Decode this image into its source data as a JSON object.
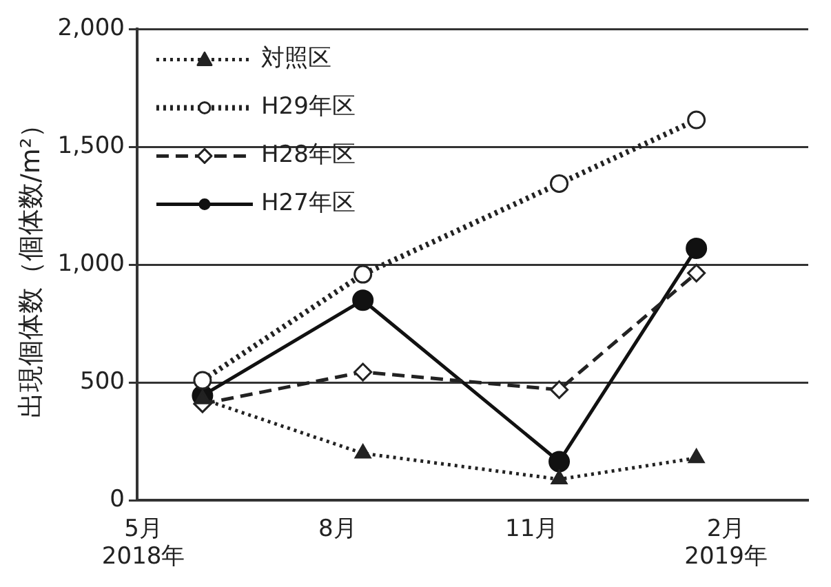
{
  "chart_data": {
    "type": "line",
    "ylabel": "出現個体数（個体数/m²）",
    "xlim": [
      "2018-04-28",
      "2019-03-12"
    ],
    "xticks": [
      {
        "value": "2018-05",
        "label": "5月\n2018年"
      },
      {
        "value": "2018-08",
        "label": "8月"
      },
      {
        "value": "2018-11",
        "label": "11月"
      },
      {
        "value": "2019-02",
        "label": "2月\n2019年"
      }
    ],
    "ylim": [
      0,
      2000
    ],
    "yticks": [
      {
        "value": 0,
        "label": "0"
      },
      {
        "value": 500,
        "label": "500"
      },
      {
        "value": 1000,
        "label": "1,000"
      },
      {
        "value": 1500,
        "label": "1,500"
      },
      {
        "value": 2000,
        "label": "2,000"
      }
    ],
    "x": [
      "2018-05-29",
      "2018-08-13",
      "2018-11-14",
      "2019-01-18"
    ],
    "grid": "y",
    "legend": "top left",
    "series": [
      {
        "name": "対照区",
        "color": "#222222",
        "marker": "triangle",
        "line_style": "dotted",
        "values": [
          430,
          200,
          90,
          180
        ]
      },
      {
        "name": "H29年区",
        "color": "#222222",
        "marker": "circle",
        "line_style": "dotted",
        "values": [
          510,
          960,
          1345,
          1615
        ]
      },
      {
        "name": "H28年区",
        "color": "#222222",
        "marker": "diamond",
        "line_style": "dashed",
        "values": [
          410,
          545,
          470,
          965
        ]
      },
      {
        "name": "H27年区",
        "color": "#111111",
        "marker": "circle",
        "line_style": "solid",
        "values": [
          445,
          850,
          165,
          1070
        ]
      }
    ]
  }
}
